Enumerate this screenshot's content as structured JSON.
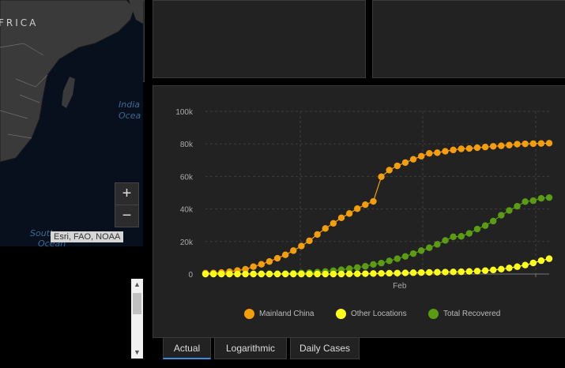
{
  "map": {
    "region_label": "FRICA",
    "ocean_indian_1": "India",
    "ocean_indian_2": "Ocea",
    "ocean_south_1": "Southe",
    "ocean_south_2": "Ocean",
    "zoom_in": "+",
    "zoom_out": "−",
    "attribution": "Esri, FAO, NOAA"
  },
  "tabs": [
    {
      "label": "Actual",
      "active": true
    },
    {
      "label": "Logarithmic",
      "active": false
    },
    {
      "label": "Daily Cases",
      "active": false
    }
  ],
  "list": {
    "scroll_up": "▲",
    "scroll_down": "▼"
  },
  "colors": {
    "mainland": "#f59e0b",
    "other": "#ffff1a",
    "recovered": "#5a9c12",
    "accent": "#3b8be6"
  },
  "chart_data": {
    "type": "line",
    "y_ticks": [
      "0",
      "20k",
      "40k",
      "60k",
      "80k",
      "100k"
    ],
    "ylim": [
      0,
      100000
    ],
    "x_ticks": [
      {
        "label": "Feb",
        "index": 24
      }
    ],
    "grid": true,
    "legend_position": "bottom",
    "legend": [
      "Mainland China",
      "Other Locations",
      "Total Recovered"
    ],
    "series": [
      {
        "name": "Mainland China",
        "color_key": "mainland",
        "values": [
          555,
          654,
          941,
          1434,
          2118,
          2927,
          4515,
          5974,
          7711,
          9692,
          11791,
          14380,
          17205,
          20440,
          24324,
          28018,
          31161,
          34546,
          37198,
          40171,
          42638,
          44653,
          59804,
          63851,
          66492,
          68500,
          70548,
          72436,
          74185,
          74576,
          75465,
          76288,
          76936,
          77150,
          77658,
          78064,
          78497,
          78824,
          79251,
          79824,
          80026,
          80151,
          80271,
          80422
        ]
      },
      {
        "name": "Other Locations",
        "color_key": "other",
        "values": [
          0,
          0,
          0,
          0,
          0,
          0,
          0,
          0,
          0,
          0,
          0,
          0,
          0,
          0,
          0,
          0,
          0,
          0,
          100,
          150,
          200,
          300,
          400,
          500,
          600,
          700,
          800,
          900,
          1000,
          1100,
          1200,
          1300,
          1400,
          1600,
          1800,
          2100,
          2500,
          3000,
          3700,
          4500,
          5500,
          6800,
          8200,
          9400
        ]
      },
      {
        "name": "Total Recovered",
        "color_key": "recovered",
        "values": [
          28,
          28,
          36,
          39,
          52,
          61,
          107,
          126,
          143,
          222,
          284,
          472,
          623,
          852,
          1153,
          1540,
          2050,
          2651,
          3281,
          3996,
          4740,
          5911,
          6723,
          8096,
          9419,
          10844,
          12552,
          14376,
          16155,
          18264,
          20659,
          22888,
          23182,
          24990,
          27650,
          29775,
          32531,
          36157,
          39049,
          41675,
          44518,
          45100,
          46500,
          47000
        ]
      }
    ]
  }
}
